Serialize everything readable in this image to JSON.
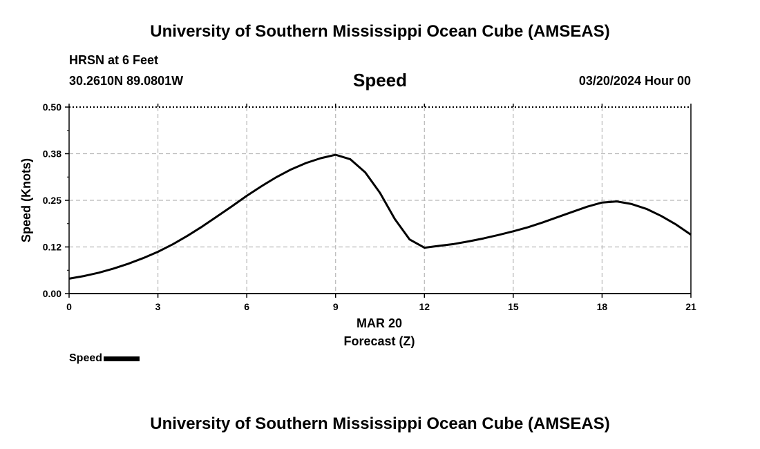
{
  "header": {
    "title": "University of Southern Mississippi Ocean Cube (AMSEAS)",
    "station": "HRSN at 6 Feet",
    "coordinates": "30.2610N  89.0801W",
    "chart_title": "Speed",
    "datetime": "03/20/2024 Hour 00"
  },
  "footer": {
    "title": "University of Southern Mississippi Ocean Cube (AMSEAS)"
  },
  "chart_data": {
    "type": "line",
    "title": "Speed",
    "xlabel": "Forecast (Z)",
    "x_date_label": "MAR 20",
    "ylabel": "Speed (Knots)",
    "xlim": [
      0,
      21
    ],
    "ylim": [
      0,
      0.5
    ],
    "x_ticks": [
      0,
      3,
      6,
      9,
      12,
      15,
      18,
      21
    ],
    "x_tick_labels": [
      "0",
      "3",
      "6",
      "9",
      "12",
      "15",
      "18",
      "21"
    ],
    "y_ticks": [
      0,
      0.125,
      0.25,
      0.375,
      0.5
    ],
    "y_tick_labels": [
      "0.00",
      "0.12",
      "0.25",
      "0.38",
      "0.50"
    ],
    "grid": true,
    "legend_position": "bottom-left",
    "series": [
      {
        "name": "Speed",
        "color": "#000000",
        "x": [
          0,
          0.5,
          1,
          1.5,
          2,
          2.5,
          3,
          3.5,
          4,
          4.5,
          5,
          5.5,
          6,
          6.5,
          7,
          7.5,
          8,
          8.5,
          9,
          9.5,
          10,
          10.5,
          11,
          11.5,
          12,
          12.5,
          13,
          13.5,
          14,
          14.5,
          15,
          15.5,
          16,
          16.5,
          17,
          17.5,
          18,
          18.5,
          19,
          19.5,
          20,
          20.5,
          21
        ],
        "values": [
          0.04,
          0.047,
          0.056,
          0.067,
          0.08,
          0.095,
          0.112,
          0.132,
          0.155,
          0.18,
          0.207,
          0.234,
          0.262,
          0.288,
          0.312,
          0.333,
          0.35,
          0.363,
          0.372,
          0.36,
          0.325,
          0.27,
          0.2,
          0.145,
          0.123,
          0.128,
          0.133,
          0.14,
          0.148,
          0.157,
          0.167,
          0.178,
          0.191,
          0.205,
          0.219,
          0.233,
          0.244,
          0.247,
          0.24,
          0.227,
          0.208,
          0.185,
          0.158
        ]
      }
    ]
  },
  "legend": {
    "label": "Speed"
  }
}
